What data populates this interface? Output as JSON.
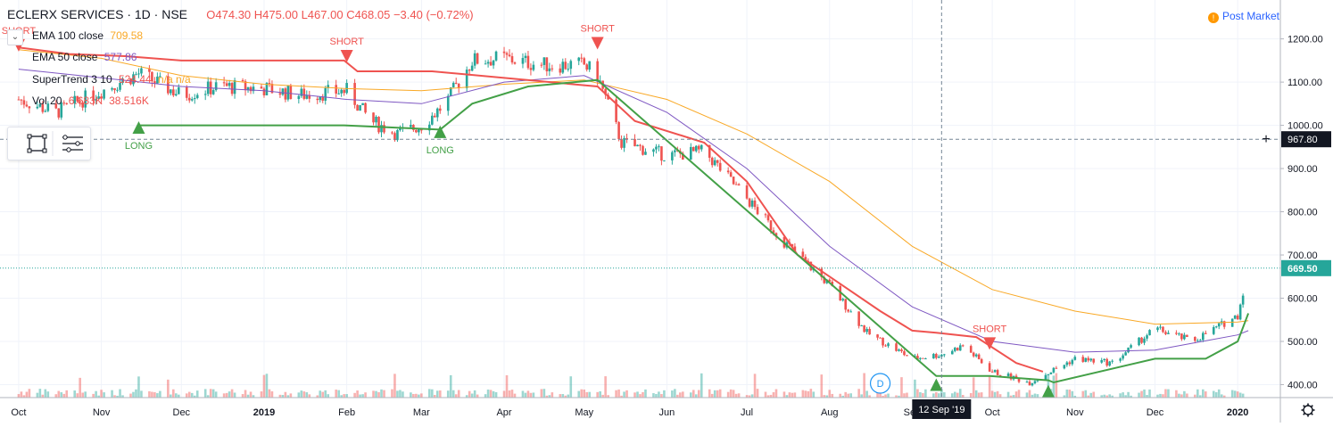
{
  "header": {
    "symbol": "ECLERX SERVICES · 1D · NSE",
    "open": "O474.30",
    "high": "H475.00",
    "low": "L467.00",
    "close": "C468.05",
    "change": "−3.40 (−0.72%)"
  },
  "status": {
    "post_market": "Post Market",
    "post_market_icon": "!"
  },
  "indicators": [
    {
      "label": "EMA 100 close",
      "value": "709.58",
      "color": "#f9a825"
    },
    {
      "label": "EMA 50 close",
      "value": "577.86",
      "color": "#7e57c2"
    },
    {
      "label": "SuperTrend 3 10",
      "value": "524.44",
      "extra": "n/a n/a",
      "color": "#ef5350"
    },
    {
      "label": "Vol 20",
      "value": "6.683K",
      "extra": "38.516K",
      "color": "#ef5350"
    }
  ],
  "crosshair": {
    "price_label": "967.80",
    "date_label": "12 Sep '19"
  },
  "last_price_label": "669.50",
  "events_badge": "D",
  "chart_data": {
    "type": "line",
    "x_axis_labels": [
      "Oct",
      "Nov",
      "Dec",
      "2019",
      "Feb",
      "Mar",
      "Apr",
      "May",
      "Jun",
      "Jul",
      "Aug",
      "Sep",
      "Oct",
      "Nov",
      "Dec",
      "2020"
    ],
    "y_axis_labels": [
      "400.00",
      "500.00",
      "600.00",
      "700.00",
      "800.00",
      "900.00",
      "1000.00",
      "1100.00",
      "1200.00"
    ],
    "ylim": [
      370,
      1290
    ],
    "series": [
      {
        "name": "Price",
        "color": "#26a69a",
        "x": [
          "2018-10-01",
          "2018-10-15",
          "2018-11-01",
          "2018-11-15",
          "2018-12-01",
          "2018-12-15",
          "2019-01-01",
          "2019-01-15",
          "2019-02-01",
          "2019-02-10",
          "2019-02-20",
          "2019-03-01",
          "2019-03-10",
          "2019-03-20",
          "2019-04-01",
          "2019-04-15",
          "2019-05-01",
          "2019-05-06",
          "2019-05-15",
          "2019-06-01",
          "2019-06-15",
          "2019-07-01",
          "2019-07-15",
          "2019-08-01",
          "2019-08-15",
          "2019-09-01",
          "2019-09-12",
          "2019-09-20",
          "2019-10-01",
          "2019-10-15",
          "2019-11-01",
          "2019-11-15",
          "2019-12-01",
          "2019-12-15",
          "2020-01-01",
          "2020-01-05"
        ],
        "values": [
          1060,
          1030,
          1080,
          1120,
          1070,
          1090,
          1085,
          1070,
          1080,
          1010,
          980,
          1000,
          1050,
          1150,
          1155,
          1140,
          1140,
          1115,
          960,
          930,
          940,
          830,
          730,
          630,
          520,
          460,
          470,
          490,
          430,
          405,
          460,
          450,
          530,
          500,
          560,
          670
        ]
      },
      {
        "name": "EMA 100",
        "color": "#f9a825",
        "x": [
          "2018-10-01",
          "2018-11-01",
          "2018-12-01",
          "2019-01-01",
          "2019-02-01",
          "2019-03-01",
          "2019-04-01",
          "2019-05-01",
          "2019-06-01",
          "2019-07-01",
          "2019-08-01",
          "2019-09-01",
          "2019-10-01",
          "2019-11-01",
          "2019-12-01",
          "2020-01-01",
          "2020-01-05"
        ],
        "values": [
          1175,
          1155,
          1115,
          1095,
          1085,
          1080,
          1095,
          1105,
          1060,
          980,
          870,
          720,
          620,
          570,
          540,
          545,
          548
        ]
      },
      {
        "name": "EMA 50",
        "color": "#7e57c2",
        "x": [
          "2018-10-01",
          "2018-11-01",
          "2018-12-01",
          "2019-01-01",
          "2019-02-01",
          "2019-03-01",
          "2019-04-01",
          "2019-05-01",
          "2019-06-01",
          "2019-07-01",
          "2019-08-01",
          "2019-09-01",
          "2019-10-01",
          "2019-11-01",
          "2019-12-01",
          "2020-01-01",
          "2020-01-05"
        ],
        "values": [
          1130,
          1110,
          1090,
          1080,
          1060,
          1050,
          1100,
          1115,
          1030,
          900,
          720,
          580,
          500,
          475,
          480,
          515,
          525
        ]
      },
      {
        "name": "SuperTrend down",
        "color": "#ef5350",
        "x": [
          "2018-10-01",
          "2018-10-20",
          "2018-11-10",
          "2018-12-01",
          "2019-01-01",
          "2019-01-31",
          "2019-02-05",
          "2019-03-05",
          "2019-05-06",
          "2019-05-20",
          "2019-06-15",
          "2019-07-01",
          "2019-07-20",
          "2019-08-01",
          "2019-08-20",
          "2019-09-01",
          "2019-09-10",
          "2019-09-25",
          "2019-10-10",
          "2019-10-20"
        ],
        "values": [
          1180,
          1165,
          1160,
          1150,
          1150,
          1150,
          1125,
          1125,
          1090,
          1010,
          960,
          870,
          700,
          650,
          570,
          525,
          520,
          510,
          450,
          430
        ]
      },
      {
        "name": "SuperTrend up",
        "color": "#43a047",
        "x": [
          "2018-11-15",
          "2019-01-31",
          "2019-03-08",
          "2019-03-20",
          "2019-04-10",
          "2019-05-06",
          "2019-09-10",
          "2019-09-30",
          "2019-10-22",
          "2019-10-24",
          "2019-12-01",
          "2019-12-20",
          "2020-01-01",
          "2020-01-05"
        ],
        "values": [
          1000,
          1000,
          990,
          1050,
          1090,
          1105,
          420,
          420,
          410,
          405,
          460,
          460,
          500,
          565
        ]
      }
    ]
  },
  "signals": [
    {
      "type": "SHORT",
      "label": "SHORT",
      "date": "2018-10-01",
      "price": 1185,
      "direction": "down",
      "text": "SHORT"
    },
    {
      "type": "LONG",
      "label": "LONG",
      "date": "2018-11-15",
      "price": 995,
      "direction": "up",
      "text": "LONG"
    },
    {
      "type": "SHORT",
      "label": "SHORT",
      "date": "2019-02-01",
      "price": 1160,
      "direction": "down",
      "text": "SHORT"
    },
    {
      "type": "LONG",
      "label": "LONG",
      "date": "2019-03-08",
      "price": 985,
      "direction": "up",
      "text": "LONG"
    },
    {
      "type": "SHORT",
      "label": "SHORT",
      "date": "2019-05-06",
      "price": 1190,
      "direction": "down",
      "text": "SHORT"
    },
    {
      "type": "LONG",
      "label": "LONG",
      "date": "2019-09-10",
      "price": 400,
      "direction": "up",
      "text": "LONG"
    },
    {
      "type": "SHORT",
      "label": "SHORT",
      "date": "2019-09-30",
      "price": 495,
      "direction": "down",
      "text": "SHORT"
    },
    {
      "type": "LONG",
      "label": "LONG",
      "date": "2019-10-22",
      "price": 385,
      "direction": "up",
      "text": ""
    }
  ],
  "colors": {
    "axis_text": "#131722",
    "grid": "#f0f3fa",
    "up": "#26a69a",
    "down": "#ef5350",
    "crosshair_label_bg": "#131722",
    "last_price_bg": "#26a69a"
  }
}
